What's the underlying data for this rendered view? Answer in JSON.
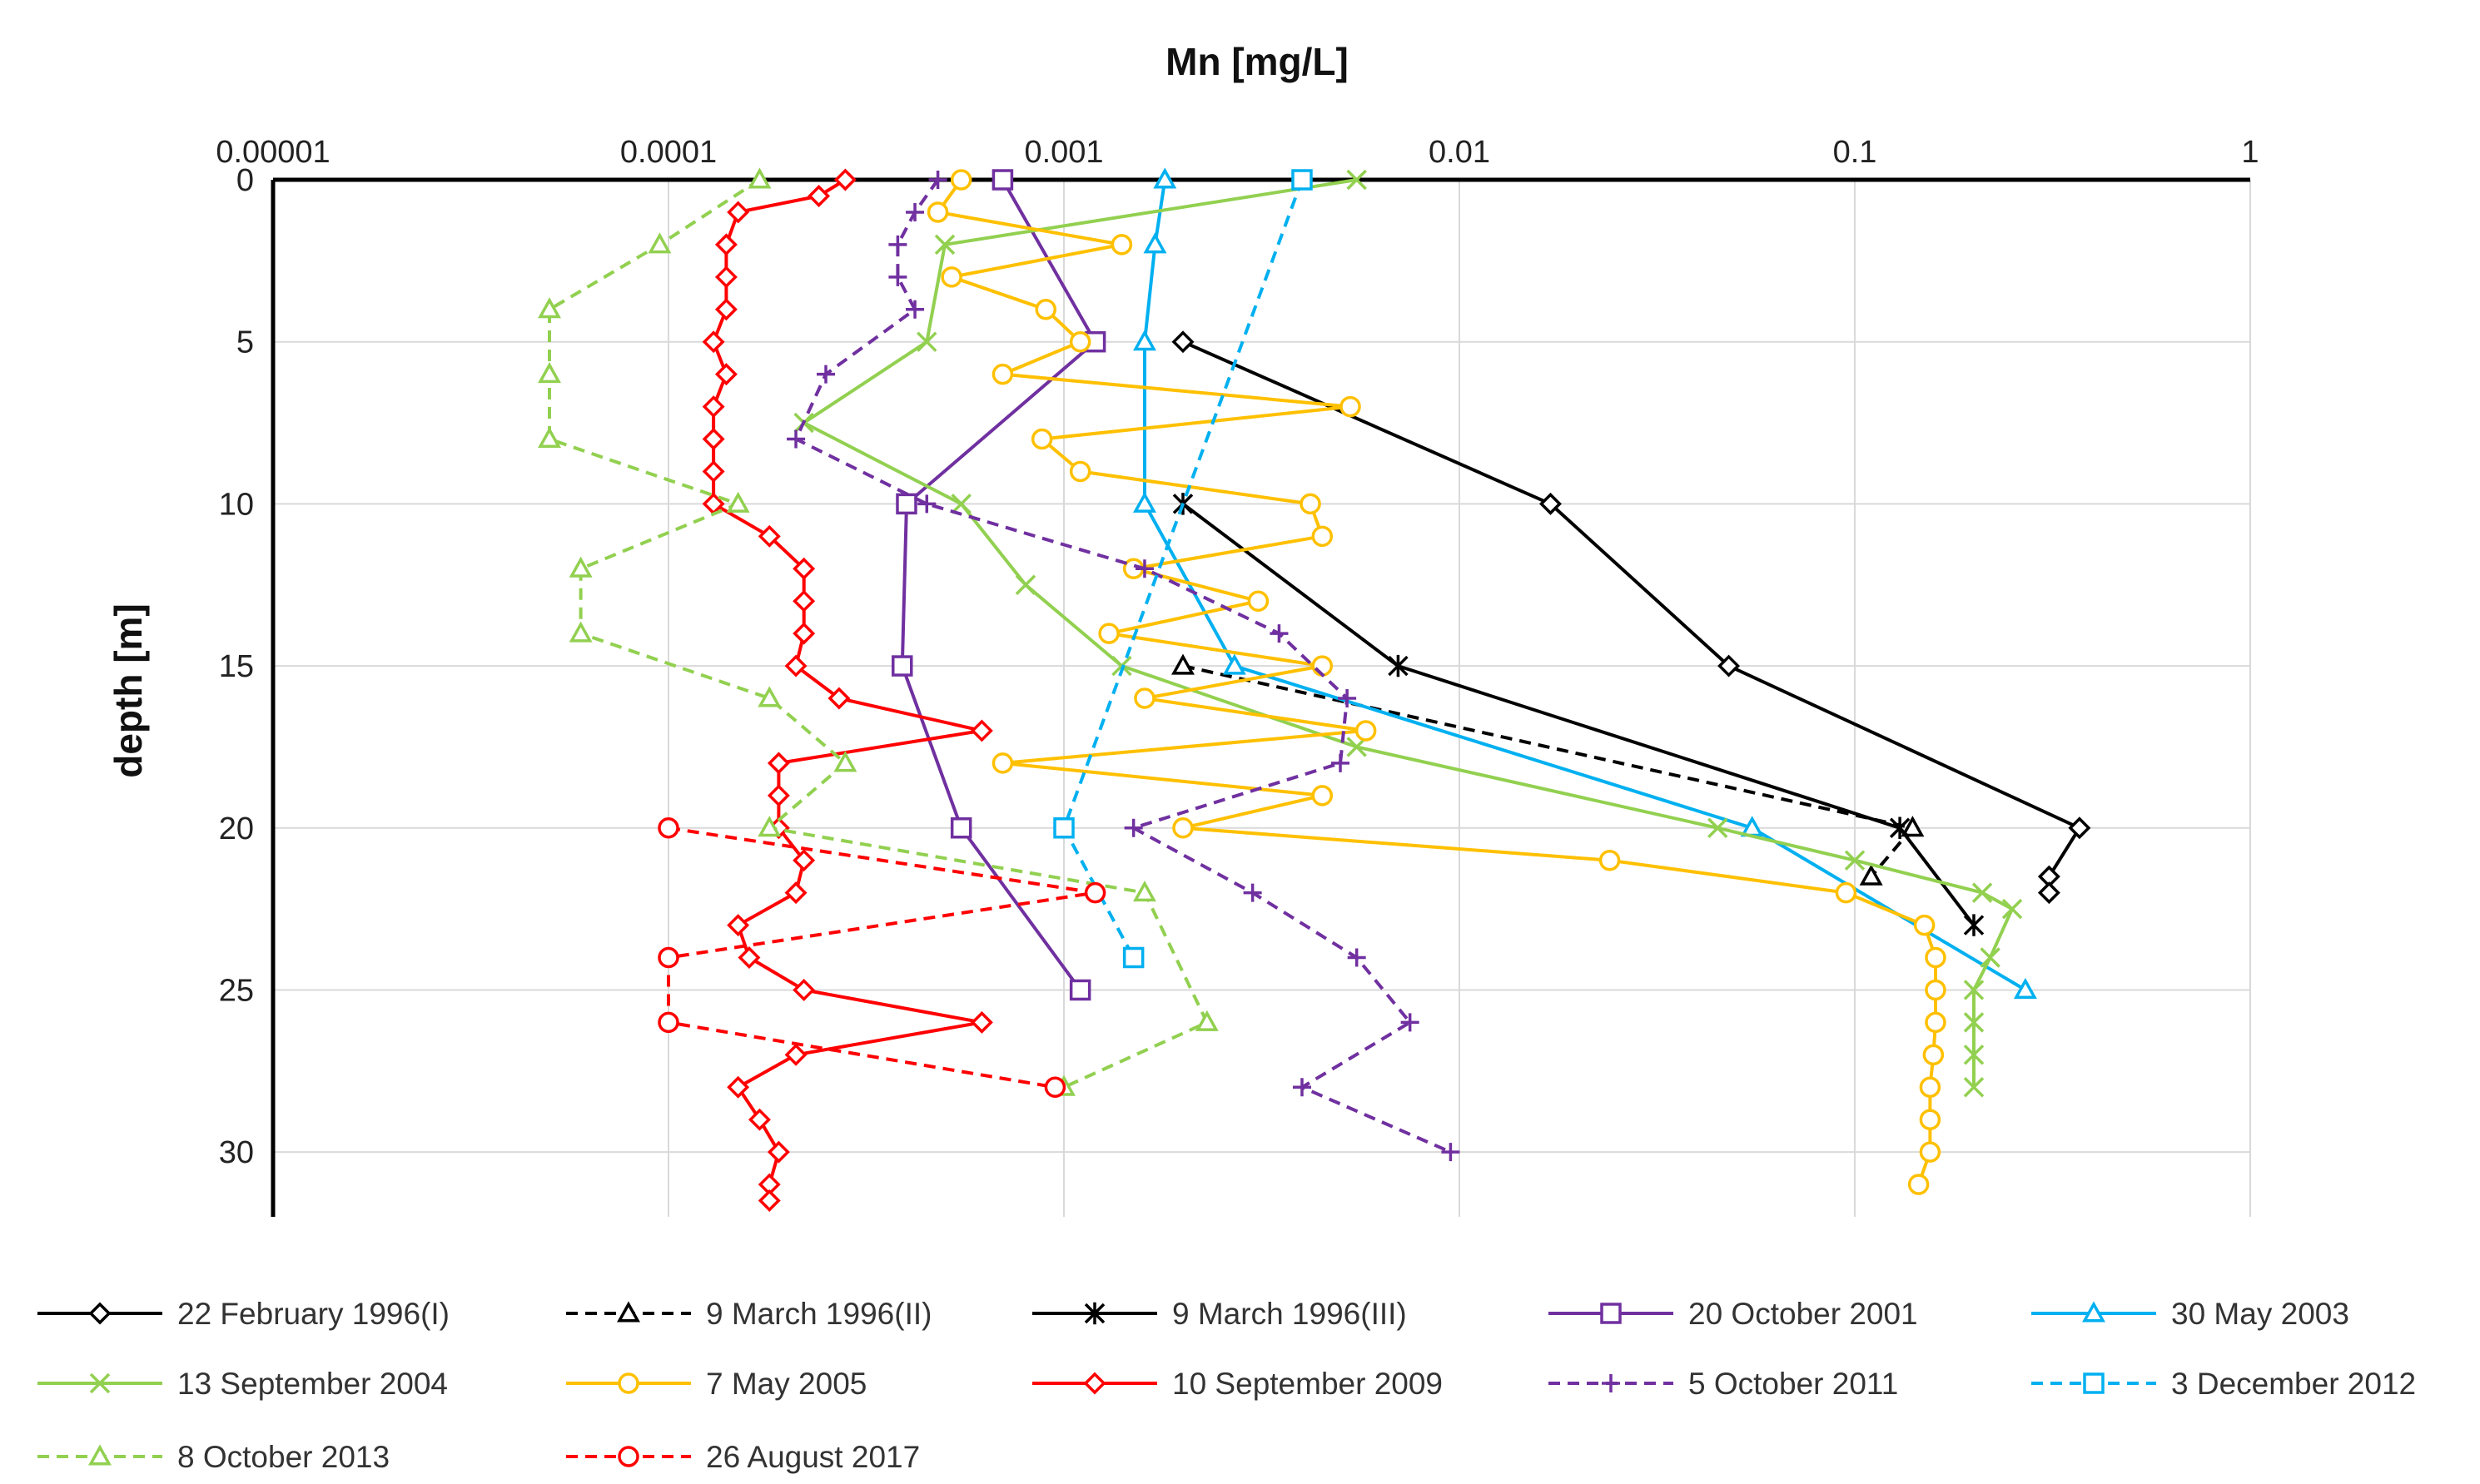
{
  "chart_data": {
    "type": "line",
    "title": "",
    "xlabel": "Mn [mg/L]",
    "ylabel": "depth [m]",
    "xscale": "log",
    "xlim": [
      1e-05,
      1
    ],
    "ylim": [
      0,
      32
    ],
    "x_ticks": [
      {
        "value": 1e-05,
        "label": "0.00001"
      },
      {
        "value": 0.0001,
        "label": "0.0001"
      },
      {
        "value": 0.001,
        "label": "0.001"
      },
      {
        "value": 0.01,
        "label": "0.01"
      },
      {
        "value": 0.1,
        "label": "0.1"
      },
      {
        "value": 1,
        "label": "1"
      }
    ],
    "y_ticks": [
      {
        "value": 0,
        "label": "0"
      },
      {
        "value": 5,
        "label": "5"
      },
      {
        "value": 10,
        "label": "10"
      },
      {
        "value": 15,
        "label": "15"
      },
      {
        "value": 20,
        "label": "20"
      },
      {
        "value": 25,
        "label": "25"
      },
      {
        "value": 30,
        "label": "30"
      }
    ],
    "grid": true,
    "legend_position": "bottom",
    "series": [
      {
        "name": "22 February 1996(I)",
        "color": "#000000",
        "dash": "solid",
        "marker": "diamond",
        "points": [
          [
            0.002,
            5
          ],
          [
            0.017,
            10
          ],
          [
            0.048,
            15
          ],
          [
            0.37,
            20
          ],
          [
            0.31,
            21.5
          ],
          [
            0.31,
            22
          ]
        ]
      },
      {
        "name": "9 March 1996(II)",
        "color": "#000000",
        "dash": "dashed",
        "marker": "triangle",
        "points": [
          [
            0.002,
            15
          ],
          [
            0.14,
            20
          ],
          [
            0.11,
            21.5
          ]
        ]
      },
      {
        "name": "9 March 1996(III)",
        "color": "#000000",
        "dash": "solid",
        "marker": "asterisk",
        "points": [
          [
            0.002,
            10
          ],
          [
            0.007,
            15
          ],
          [
            0.13,
            20
          ],
          [
            0.2,
            23
          ]
        ]
      },
      {
        "name": "20 October 2001",
        "color": "#7030A0",
        "dash": "solid",
        "marker": "square",
        "points": [
          [
            0.0007,
            0
          ],
          [
            0.0012,
            5
          ],
          [
            0.0004,
            10
          ],
          [
            0.00039,
            15
          ],
          [
            0.00055,
            20
          ],
          [
            0.0011,
            25
          ]
        ]
      },
      {
        "name": "30 May 2003",
        "color": "#00B0F0",
        "dash": "solid",
        "marker": "triangle",
        "points": [
          [
            0.0018,
            0
          ],
          [
            0.0017,
            2
          ],
          [
            0.0016,
            5
          ],
          [
            0.0016,
            10
          ],
          [
            0.0027,
            15
          ],
          [
            0.055,
            20
          ],
          [
            0.27,
            25
          ]
        ]
      },
      {
        "name": "13 September 2004",
        "color": "#92D050",
        "dash": "solid",
        "marker": "x",
        "points": [
          [
            0.0055,
            0
          ],
          [
            0.0005,
            2
          ],
          [
            0.00045,
            5
          ],
          [
            0.00022,
            7.5
          ],
          [
            0.00055,
            10
          ],
          [
            0.0008,
            12.5
          ],
          [
            0.0014,
            15
          ],
          [
            0.0055,
            17.5
          ],
          [
            0.045,
            20
          ],
          [
            0.1,
            21
          ],
          [
            0.21,
            22
          ],
          [
            0.25,
            22.5
          ],
          [
            0.22,
            24
          ],
          [
            0.2,
            25
          ],
          [
            0.2,
            26
          ],
          [
            0.2,
            27
          ],
          [
            0.2,
            28
          ]
        ]
      },
      {
        "name": "7 May 2005",
        "color": "#FFC000",
        "dash": "solid",
        "marker": "circle",
        "points": [
          [
            0.00055,
            0
          ],
          [
            0.00048,
            1
          ],
          [
            0.0014,
            2
          ],
          [
            0.00052,
            3
          ],
          [
            0.0009,
            4
          ],
          [
            0.0011,
            5
          ],
          [
            0.0007,
            6
          ],
          [
            0.0053,
            7
          ],
          [
            0.00088,
            8
          ],
          [
            0.0011,
            9
          ],
          [
            0.0042,
            10
          ],
          [
            0.0045,
            11
          ],
          [
            0.0015,
            12
          ],
          [
            0.0031,
            13
          ],
          [
            0.0013,
            14
          ],
          [
            0.0045,
            15
          ],
          [
            0.0016,
            16
          ],
          [
            0.0058,
            17
          ],
          [
            0.0007,
            18
          ],
          [
            0.0045,
            19
          ],
          [
            0.002,
            20
          ],
          [
            0.024,
            21
          ],
          [
            0.095,
            22
          ],
          [
            0.15,
            23
          ],
          [
            0.16,
            24
          ],
          [
            0.16,
            25
          ],
          [
            0.16,
            26
          ],
          [
            0.158,
            27
          ],
          [
            0.155,
            28
          ],
          [
            0.155,
            29
          ],
          [
            0.155,
            30
          ],
          [
            0.145,
            31
          ]
        ]
      },
      {
        "name": "10 September 2009",
        "color": "#FF0000",
        "dash": "solid",
        "marker": "diamond",
        "points": [
          [
            0.00028,
            0
          ],
          [
            0.00024,
            0.5
          ],
          [
            0.00015,
            1
          ],
          [
            0.00014,
            2
          ],
          [
            0.00014,
            3
          ],
          [
            0.00014,
            4
          ],
          [
            0.00013,
            5
          ],
          [
            0.00014,
            6
          ],
          [
            0.00013,
            7
          ],
          [
            0.00013,
            8
          ],
          [
            0.00013,
            9
          ],
          [
            0.00013,
            10
          ],
          [
            0.00018,
            11
          ],
          [
            0.00022,
            12
          ],
          [
            0.00022,
            13
          ],
          [
            0.00022,
            14
          ],
          [
            0.00021,
            15
          ],
          [
            0.00027,
            16
          ],
          [
            0.00062,
            17
          ],
          [
            0.00019,
            18
          ],
          [
            0.00019,
            19
          ],
          [
            0.00019,
            20
          ],
          [
            0.00022,
            21
          ],
          [
            0.00021,
            22
          ],
          [
            0.00015,
            23
          ],
          [
            0.00016,
            24
          ],
          [
            0.00022,
            25
          ],
          [
            0.00062,
            26
          ],
          [
            0.00021,
            27
          ],
          [
            0.00015,
            28
          ],
          [
            0.00017,
            29
          ],
          [
            0.00019,
            30
          ],
          [
            0.00018,
            31
          ],
          [
            0.00018,
            31.5
          ]
        ]
      },
      {
        "name": "5 October 2011",
        "color": "#7030A0",
        "dash": "dashed",
        "marker": "plus",
        "points": [
          [
            0.00048,
            0
          ],
          [
            0.00042,
            1
          ],
          [
            0.00038,
            2
          ],
          [
            0.00038,
            3
          ],
          [
            0.00042,
            4
          ],
          [
            0.00025,
            6
          ],
          [
            0.00021,
            8
          ],
          [
            0.00045,
            10
          ],
          [
            0.0016,
            12
          ],
          [
            0.0035,
            14
          ],
          [
            0.0052,
            16
          ],
          [
            0.005,
            18
          ],
          [
            0.0015,
            20
          ],
          [
            0.003,
            22
          ],
          [
            0.0055,
            24
          ],
          [
            0.0075,
            26
          ],
          [
            0.004,
            28
          ],
          [
            0.0095,
            30
          ]
        ]
      },
      {
        "name": "3 December 2012",
        "color": "#00B0F0",
        "dash": "dashed",
        "marker": "square",
        "points": [
          [
            0.004,
            0
          ],
          [
            0.001,
            20
          ],
          [
            0.0015,
            24
          ]
        ]
      },
      {
        "name": "8 October 2013",
        "color": "#92D050",
        "dash": "dashed",
        "marker": "triangle",
        "points": [
          [
            0.00017,
            0
          ],
          [
            9.5e-05,
            2
          ],
          [
            5e-05,
            4
          ],
          [
            5e-05,
            6
          ],
          [
            5e-05,
            8
          ],
          [
            0.00015,
            10
          ],
          [
            6e-05,
            12
          ],
          [
            6e-05,
            14
          ],
          [
            0.00018,
            16
          ],
          [
            0.00028,
            18
          ],
          [
            0.00018,
            20
          ],
          [
            0.0016,
            22
          ],
          [
            0.0023,
            26
          ],
          [
            0.001,
            28
          ]
        ]
      },
      {
        "name": "26 August 2017",
        "color": "#FF0000",
        "dash": "dashed",
        "marker": "circle",
        "points": [
          [
            0.0001,
            20
          ],
          [
            0.0012,
            22
          ],
          [
            0.0001,
            24
          ],
          [
            0.0001,
            26
          ],
          [
            0.00095,
            28
          ]
        ]
      }
    ]
  }
}
